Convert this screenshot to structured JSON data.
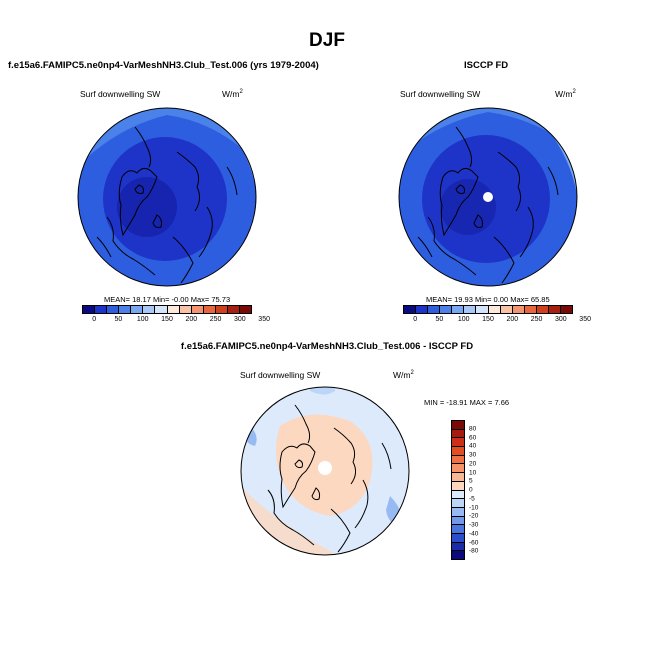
{
  "page": {
    "title": "DJF"
  },
  "panels": {
    "model": {
      "title": "f.e15a6.FAMIPC5.ne0np4-VarMeshNH3.Club_Test.006 (yrs 1979-2004)",
      "variable": "Surf downwelling SW",
      "units_base": "W/m",
      "units_exp": "2",
      "stats": "MEAN=  18.17  Min=  -0.00  Max=  75.73"
    },
    "obs": {
      "title": "ISCCP FD",
      "variable": "Surf downwelling SW",
      "units_base": "W/m",
      "units_exp": "2",
      "stats": "MEAN=  19.93  Min=   0.00  Max=  65.85"
    },
    "diff": {
      "title": "f.e15a6.FAMIPC5.ne0np4-VarMeshNH3.Club_Test.006 - ISCCP FD",
      "variable": "Surf downwelling SW",
      "units_base": "W/m",
      "units_exp": "2",
      "stats": "MIN = -18.91  MAX =   7.66"
    }
  },
  "colorbars": {
    "abs": {
      "ticks": [
        "0",
        "50",
        "100",
        "150",
        "200",
        "250",
        "300",
        "350"
      ],
      "colors": [
        "#0a0a82",
        "#1e34c8",
        "#2e5ee0",
        "#4a82ea",
        "#78a8f2",
        "#a8c8f8",
        "#d4e4fb",
        "#fde8dc",
        "#f9c2a6",
        "#f29472",
        "#e8663e",
        "#d0401c",
        "#a82010",
        "#780a08"
      ]
    },
    "diff": {
      "ticks": [
        "80",
        "60",
        "40",
        "30",
        "20",
        "10",
        "5",
        "0",
        "-5",
        "-10",
        "-20",
        "-30",
        "-40",
        "-60",
        "-80"
      ],
      "colors": [
        "#7a0a08",
        "#a81a0e",
        "#cc3018",
        "#e24e22",
        "#ef7040",
        "#f59468",
        "#f9b895",
        "#fcd8c0",
        "#dceafc",
        "#bcd6f8",
        "#98baf2",
        "#7298ea",
        "#4a74de",
        "#2a4ec8",
        "#1a2ca8",
        "#0a0a7e"
      ]
    }
  },
  "chart_data": [
    {
      "type": "heatmap",
      "projection": "north polar stereographic",
      "title": "f.e15a6.FAMIPC5.ne0np4-VarMeshNH3.Club_Test.006 (yrs 1979-2004)",
      "variable": "Surf downwelling SW",
      "units": "W/m2",
      "mean": 18.17,
      "min": -0.0,
      "max": 75.73,
      "contour_levels": [
        0,
        25,
        50,
        75,
        100,
        125,
        150,
        175,
        200,
        225,
        250,
        275,
        300,
        325,
        350
      ]
    },
    {
      "type": "heatmap",
      "projection": "north polar stereographic",
      "title": "ISCCP FD",
      "variable": "Surf downwelling SW",
      "units": "W/m2",
      "mean": 19.93,
      "min": 0.0,
      "max": 65.85,
      "contour_levels": [
        0,
        25,
        50,
        75,
        100,
        125,
        150,
        175,
        200,
        225,
        250,
        275,
        300,
        325,
        350
      ]
    },
    {
      "type": "heatmap",
      "projection": "north polar stereographic",
      "title": "f.e15a6.FAMIPC5.ne0np4-VarMeshNH3.Club_Test.006 - ISCCP FD",
      "variable": "Surf downwelling SW",
      "units": "W/m2",
      "min": -18.91,
      "max": 7.66,
      "contour_levels": [
        -80,
        -60,
        -40,
        -30,
        -20,
        -10,
        -5,
        0,
        5,
        10,
        20,
        30,
        40,
        60,
        80
      ]
    }
  ]
}
